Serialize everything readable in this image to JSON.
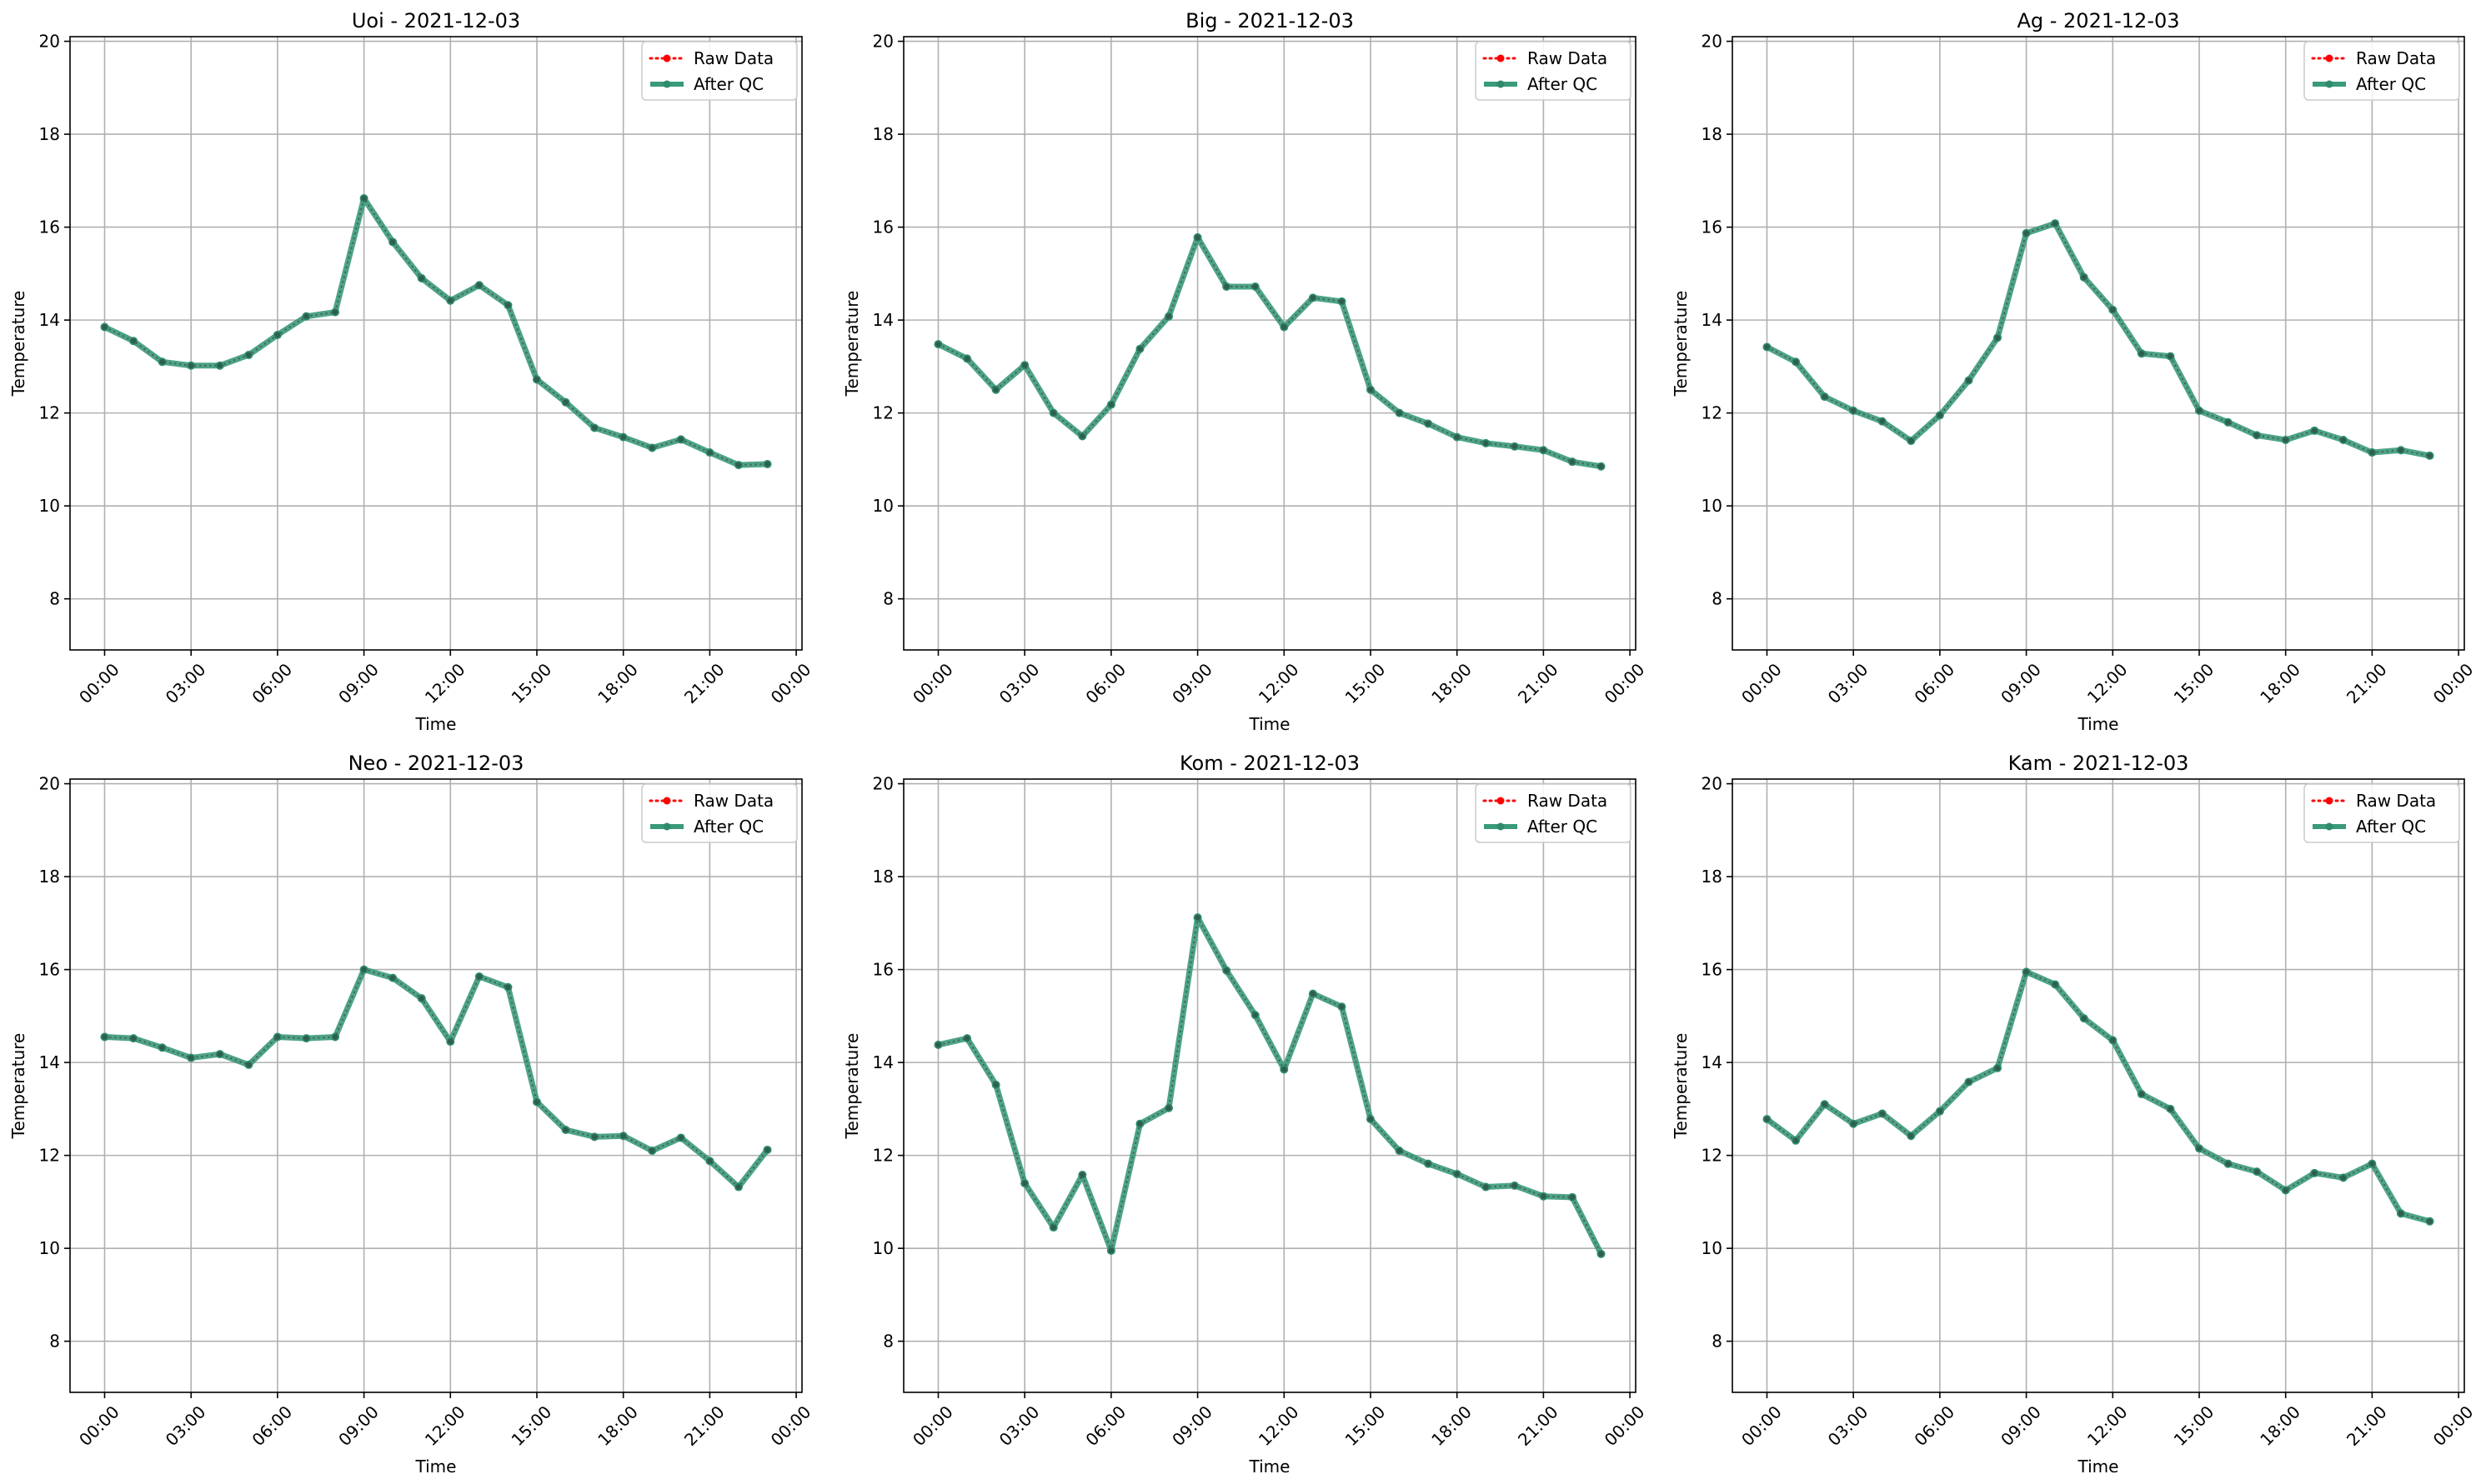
{
  "figure": {
    "background": "#ffffff"
  },
  "style": {
    "raw_color": "#ff0000",
    "qc_color": "#2e8b6e",
    "qc_line_color": "#3a9a7a",
    "grid_color": "#b0b0b0"
  },
  "chart_data": [
    {
      "type": "line",
      "title": "Uoi - 2021-12-03",
      "xlabel": "Time",
      "ylabel": "Temperature",
      "ylim": [
        6.9,
        20.1
      ],
      "yticks": [
        8,
        10,
        12,
        14,
        16,
        18,
        20
      ],
      "xlim": [
        "2021-12-02 22:48",
        "2021-12-04 00:12"
      ],
      "xticks": [
        "00:00",
        "03:00",
        "06:00",
        "09:00",
        "12:00",
        "15:00",
        "18:00",
        "21:00",
        "00:00"
      ],
      "grid": true,
      "legend": "top-right",
      "x": [
        "00:00",
        "01:00",
        "02:00",
        "03:00",
        "04:00",
        "05:00",
        "06:00",
        "07:00",
        "08:00",
        "09:00",
        "10:00",
        "11:00",
        "12:00",
        "13:00",
        "14:00",
        "15:00",
        "16:00",
        "17:00",
        "18:00",
        "19:00",
        "20:00",
        "21:00",
        "22:00",
        "23:00"
      ],
      "series": [
        {
          "name": "Raw Data",
          "values": [
            13.85,
            13.55,
            13.1,
            13.02,
            13.02,
            13.25,
            13.68,
            14.08,
            14.17,
            16.62,
            15.68,
            14.9,
            14.42,
            14.75,
            14.32,
            12.72,
            12.23,
            11.68,
            11.48,
            11.25,
            11.43,
            11.15,
            10.88,
            10.9
          ]
        },
        {
          "name": "After QC",
          "values": [
            13.85,
            13.55,
            13.1,
            13.02,
            13.02,
            13.25,
            13.68,
            14.08,
            14.17,
            16.62,
            15.68,
            14.9,
            14.42,
            14.75,
            14.32,
            12.72,
            12.23,
            11.68,
            11.48,
            11.25,
            11.43,
            11.15,
            10.88,
            10.9
          ]
        }
      ]
    },
    {
      "type": "line",
      "title": "Big - 2021-12-03",
      "xlabel": "Time",
      "ylabel": "Temperature",
      "ylim": [
        6.9,
        20.1
      ],
      "yticks": [
        8,
        10,
        12,
        14,
        16,
        18,
        20
      ],
      "xlim": [
        "2021-12-02 22:48",
        "2021-12-04 00:12"
      ],
      "xticks": [
        "00:00",
        "03:00",
        "06:00",
        "09:00",
        "12:00",
        "15:00",
        "18:00",
        "21:00",
        "00:00"
      ],
      "grid": true,
      "legend": "top-right",
      "x": [
        "00:00",
        "01:00",
        "02:00",
        "03:00",
        "04:00",
        "05:00",
        "06:00",
        "07:00",
        "08:00",
        "09:00",
        "10:00",
        "11:00",
        "12:00",
        "13:00",
        "14:00",
        "15:00",
        "16:00",
        "17:00",
        "18:00",
        "19:00",
        "20:00",
        "21:00",
        "22:00",
        "23:00"
      ],
      "series": [
        {
          "name": "Raw Data",
          "values": [
            13.48,
            13.17,
            12.5,
            13.03,
            12.0,
            11.5,
            12.18,
            13.38,
            14.08,
            15.78,
            14.72,
            14.72,
            13.85,
            14.48,
            14.4,
            12.5,
            12.0,
            11.77,
            11.48,
            11.35,
            11.28,
            11.2,
            10.95,
            10.85
          ]
        },
        {
          "name": "After QC",
          "values": [
            13.48,
            13.17,
            12.5,
            13.03,
            12.0,
            11.5,
            12.18,
            13.38,
            14.08,
            15.78,
            14.72,
            14.72,
            13.85,
            14.48,
            14.4,
            12.5,
            12.0,
            11.77,
            11.48,
            11.35,
            11.28,
            11.2,
            10.95,
            10.85
          ]
        }
      ]
    },
    {
      "type": "line",
      "title": "Ag - 2021-12-03",
      "xlabel": "Time",
      "ylabel": "Temperature",
      "ylim": [
        6.9,
        20.1
      ],
      "yticks": [
        8,
        10,
        12,
        14,
        16,
        18,
        20
      ],
      "xlim": [
        "2021-12-02 22:48",
        "2021-12-04 00:12"
      ],
      "xticks": [
        "00:00",
        "03:00",
        "06:00",
        "09:00",
        "12:00",
        "15:00",
        "18:00",
        "21:00",
        "00:00"
      ],
      "grid": true,
      "legend": "top-right",
      "x": [
        "00:00",
        "01:00",
        "02:00",
        "03:00",
        "04:00",
        "05:00",
        "06:00",
        "07:00",
        "08:00",
        "09:00",
        "10:00",
        "11:00",
        "12:00",
        "13:00",
        "14:00",
        "15:00",
        "16:00",
        "17:00",
        "18:00",
        "19:00",
        "20:00",
        "21:00",
        "22:00",
        "23:00"
      ],
      "series": [
        {
          "name": "Raw Data",
          "values": [
            13.42,
            13.1,
            12.35,
            12.05,
            11.82,
            11.4,
            11.95,
            12.7,
            13.62,
            15.87,
            16.08,
            14.92,
            14.22,
            13.28,
            13.22,
            12.05,
            11.8,
            11.52,
            11.42,
            11.62,
            11.42,
            11.15,
            11.2,
            11.08
          ]
        },
        {
          "name": "After QC",
          "values": [
            13.42,
            13.1,
            12.35,
            12.05,
            11.82,
            11.4,
            11.95,
            12.7,
            13.62,
            15.87,
            16.08,
            14.92,
            14.22,
            13.28,
            13.22,
            12.05,
            11.8,
            11.52,
            11.42,
            11.62,
            11.42,
            11.15,
            11.2,
            11.08
          ]
        }
      ]
    },
    {
      "type": "line",
      "title": "Neo - 2021-12-03",
      "xlabel": "Time",
      "ylabel": "Temperature",
      "ylim": [
        6.9,
        20.1
      ],
      "yticks": [
        8,
        10,
        12,
        14,
        16,
        18,
        20
      ],
      "xlim": [
        "2021-12-02 22:48",
        "2021-12-04 00:12"
      ],
      "xticks": [
        "00:00",
        "03:00",
        "06:00",
        "09:00",
        "12:00",
        "15:00",
        "18:00",
        "21:00",
        "00:00"
      ],
      "grid": true,
      "legend": "top-right",
      "x": [
        "00:00",
        "01:00",
        "02:00",
        "03:00",
        "04:00",
        "05:00",
        "06:00",
        "07:00",
        "08:00",
        "09:00",
        "10:00",
        "11:00",
        "12:00",
        "13:00",
        "14:00",
        "15:00",
        "16:00",
        "17:00",
        "18:00",
        "19:00",
        "20:00",
        "21:00",
        "22:00",
        "23:00"
      ],
      "series": [
        {
          "name": "Raw Data",
          "values": [
            14.55,
            14.52,
            14.32,
            14.1,
            14.18,
            13.95,
            14.55,
            14.52,
            14.55,
            16.0,
            15.82,
            15.38,
            14.45,
            15.85,
            15.62,
            13.15,
            12.55,
            12.4,
            12.42,
            12.1,
            12.38,
            11.88,
            11.32,
            12.12
          ]
        },
        {
          "name": "After QC",
          "values": [
            14.55,
            14.52,
            14.32,
            14.1,
            14.18,
            13.95,
            14.55,
            14.52,
            14.55,
            16.0,
            15.82,
            15.38,
            14.45,
            15.85,
            15.62,
            13.15,
            12.55,
            12.4,
            12.42,
            12.1,
            12.38,
            11.88,
            11.32,
            12.12
          ]
        }
      ]
    },
    {
      "type": "line",
      "title": "Kom - 2021-12-03",
      "xlabel": "Time",
      "ylabel": "Temperature",
      "ylim": [
        6.9,
        20.1
      ],
      "yticks": [
        8,
        10,
        12,
        14,
        16,
        18,
        20
      ],
      "xlim": [
        "2021-12-02 22:48",
        "2021-12-04 00:12"
      ],
      "xticks": [
        "00:00",
        "03:00",
        "06:00",
        "09:00",
        "12:00",
        "15:00",
        "18:00",
        "21:00",
        "00:00"
      ],
      "grid": true,
      "legend": "top-right",
      "x": [
        "00:00",
        "01:00",
        "02:00",
        "03:00",
        "04:00",
        "05:00",
        "06:00",
        "07:00",
        "08:00",
        "09:00",
        "10:00",
        "11:00",
        "12:00",
        "13:00",
        "14:00",
        "15:00",
        "16:00",
        "17:00",
        "18:00",
        "19:00",
        "20:00",
        "21:00",
        "22:00",
        "23:00"
      ],
      "series": [
        {
          "name": "Raw Data",
          "values": [
            14.38,
            14.52,
            13.52,
            11.4,
            10.45,
            11.58,
            9.95,
            12.68,
            13.02,
            17.12,
            15.98,
            15.02,
            13.85,
            15.48,
            15.2,
            12.78,
            12.1,
            11.82,
            11.6,
            11.32,
            11.35,
            11.12,
            11.1,
            9.88
          ]
        },
        {
          "name": "After QC",
          "values": [
            14.38,
            14.52,
            13.52,
            11.4,
            10.45,
            11.58,
            9.95,
            12.68,
            13.02,
            17.12,
            15.98,
            15.02,
            13.85,
            15.48,
            15.2,
            12.78,
            12.1,
            11.82,
            11.6,
            11.32,
            11.35,
            11.12,
            11.1,
            9.88
          ]
        }
      ]
    },
    {
      "type": "line",
      "title": "Kam - 2021-12-03",
      "xlabel": "Time",
      "ylabel": "Temperature",
      "ylim": [
        6.9,
        20.1
      ],
      "yticks": [
        8,
        10,
        12,
        14,
        16,
        18,
        20
      ],
      "xlim": [
        "2021-12-02 22:48",
        "2021-12-04 00:12"
      ],
      "xticks": [
        "00:00",
        "03:00",
        "06:00",
        "09:00",
        "12:00",
        "15:00",
        "18:00",
        "21:00",
        "00:00"
      ],
      "grid": true,
      "legend": "top-right",
      "x": [
        "00:00",
        "01:00",
        "02:00",
        "03:00",
        "04:00",
        "05:00",
        "06:00",
        "07:00",
        "08:00",
        "09:00",
        "10:00",
        "11:00",
        "12:00",
        "13:00",
        "14:00",
        "15:00",
        "16:00",
        "17:00",
        "18:00",
        "19:00",
        "20:00",
        "21:00",
        "22:00",
        "23:00"
      ],
      "series": [
        {
          "name": "Raw Data",
          "values": [
            12.78,
            12.32,
            13.1,
            12.68,
            12.9,
            12.42,
            12.95,
            13.58,
            13.88,
            15.95,
            15.68,
            14.95,
            14.48,
            13.32,
            13.0,
            12.15,
            11.82,
            11.65,
            11.25,
            11.62,
            11.52,
            11.82,
            10.75,
            10.58
          ]
        },
        {
          "name": "After QC",
          "values": [
            12.78,
            12.32,
            13.1,
            12.68,
            12.9,
            12.42,
            12.95,
            13.58,
            13.88,
            15.95,
            15.68,
            14.95,
            14.48,
            13.32,
            13.0,
            12.15,
            11.82,
            11.65,
            11.25,
            11.62,
            11.52,
            11.82,
            10.75,
            10.58
          ]
        }
      ]
    }
  ]
}
